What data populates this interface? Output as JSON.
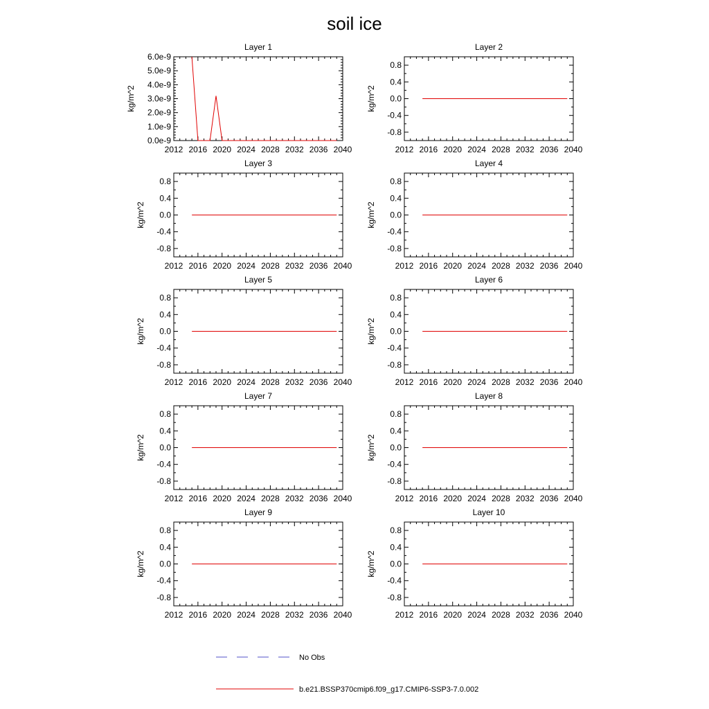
{
  "figure": {
    "title": "soil ice"
  },
  "chart_data": [
    {
      "type": "line",
      "title": "Layer 1",
      "xlabel": "",
      "ylabel": "kg/m^2",
      "xlim": [
        2012,
        2040
      ],
      "ylim": [
        0,
        6e-09
      ],
      "x_ticks": [
        "2012",
        "2016",
        "2020",
        "2024",
        "2028",
        "2032",
        "2036",
        "2040"
      ],
      "y_ticks": [
        "0.0e-9",
        "1.0e-9",
        "2.0e-9",
        "3.0e-9",
        "4.0e-9",
        "5.0e-9",
        "6.0e-9"
      ],
      "series": [
        {
          "name": "b.e21.BSSP370cmip6.f09_g17.CMIP6-SSP3-7.0.002",
          "x": [
            2015,
            2016,
            2017,
            2018,
            2019,
            2020,
            2021,
            2022,
            2023,
            2024,
            2025,
            2026,
            2027,
            2028,
            2029,
            2030,
            2031,
            2032,
            2033,
            2034,
            2035,
            2036,
            2037,
            2038,
            2039
          ],
          "values": [
            6e-09,
            0,
            0,
            0,
            3.2e-09,
            0,
            0,
            0,
            0,
            0,
            0,
            0,
            0,
            0,
            0,
            0,
            0,
            0,
            0,
            0,
            0,
            0,
            0,
            0,
            0
          ]
        }
      ]
    },
    {
      "type": "line",
      "title": "Layer 2",
      "xlabel": "",
      "ylabel": "kg/m^2",
      "xlim": [
        2012,
        2040
      ],
      "ylim": [
        -1,
        1
      ],
      "x_ticks": [
        "2012",
        "2016",
        "2020",
        "2024",
        "2028",
        "2032",
        "2036",
        "2040"
      ],
      "y_ticks": [
        "-0.8",
        "-0.4",
        "0.0",
        "0.4",
        "0.8"
      ],
      "series": [
        {
          "name": "b.e21.BSSP370cmip6.f09_g17.CMIP6-SSP3-7.0.002",
          "x": [
            2015,
            2039
          ],
          "values": [
            0,
            0
          ]
        }
      ]
    },
    {
      "type": "line",
      "title": "Layer 3",
      "xlabel": "",
      "ylabel": "kg/m^2",
      "xlim": [
        2012,
        2040
      ],
      "ylim": [
        -1,
        1
      ],
      "x_ticks": [
        "2012",
        "2016",
        "2020",
        "2024",
        "2028",
        "2032",
        "2036",
        "2040"
      ],
      "y_ticks": [
        "-0.8",
        "-0.4",
        "0.0",
        "0.4",
        "0.8"
      ],
      "series": [
        {
          "name": "b.e21.BSSP370cmip6.f09_g17.CMIP6-SSP3-7.0.002",
          "x": [
            2015,
            2039
          ],
          "values": [
            0,
            0
          ]
        }
      ]
    },
    {
      "type": "line",
      "title": "Layer 4",
      "xlabel": "",
      "ylabel": "kg/m^2",
      "xlim": [
        2012,
        2040
      ],
      "ylim": [
        -1,
        1
      ],
      "x_ticks": [
        "2012",
        "2016",
        "2020",
        "2024",
        "2028",
        "2032",
        "2036",
        "2040"
      ],
      "y_ticks": [
        "-0.8",
        "-0.4",
        "0.0",
        "0.4",
        "0.8"
      ],
      "series": [
        {
          "name": "b.e21.BSSP370cmip6.f09_g17.CMIP6-SSP3-7.0.002",
          "x": [
            2015,
            2039
          ],
          "values": [
            0,
            0
          ]
        }
      ]
    },
    {
      "type": "line",
      "title": "Layer 5",
      "xlabel": "",
      "ylabel": "kg/m^2",
      "xlim": [
        2012,
        2040
      ],
      "ylim": [
        -1,
        1
      ],
      "x_ticks": [
        "2012",
        "2016",
        "2020",
        "2024",
        "2028",
        "2032",
        "2036",
        "2040"
      ],
      "y_ticks": [
        "-0.8",
        "-0.4",
        "0.0",
        "0.4",
        "0.8"
      ],
      "series": [
        {
          "name": "b.e21.BSSP370cmip6.f09_g17.CMIP6-SSP3-7.0.002",
          "x": [
            2015,
            2039
          ],
          "values": [
            0,
            0
          ]
        }
      ]
    },
    {
      "type": "line",
      "title": "Layer 6",
      "xlabel": "",
      "ylabel": "kg/m^2",
      "xlim": [
        2012,
        2040
      ],
      "ylim": [
        -1,
        1
      ],
      "x_ticks": [
        "2012",
        "2016",
        "2020",
        "2024",
        "2028",
        "2032",
        "2036",
        "2040"
      ],
      "y_ticks": [
        "-0.8",
        "-0.4",
        "0.0",
        "0.4",
        "0.8"
      ],
      "series": [
        {
          "name": "b.e21.BSSP370cmip6.f09_g17.CMIP6-SSP3-7.0.002",
          "x": [
            2015,
            2039
          ],
          "values": [
            0,
            0
          ]
        }
      ]
    },
    {
      "type": "line",
      "title": "Layer 7",
      "xlabel": "",
      "ylabel": "kg/m^2",
      "xlim": [
        2012,
        2040
      ],
      "ylim": [
        -1,
        1
      ],
      "x_ticks": [
        "2012",
        "2016",
        "2020",
        "2024",
        "2028",
        "2032",
        "2036",
        "2040"
      ],
      "y_ticks": [
        "-0.8",
        "-0.4",
        "0.0",
        "0.4",
        "0.8"
      ],
      "series": [
        {
          "name": "b.e21.BSSP370cmip6.f09_g17.CMIP6-SSP3-7.0.002",
          "x": [
            2015,
            2039
          ],
          "values": [
            0,
            0
          ]
        }
      ]
    },
    {
      "type": "line",
      "title": "Layer 8",
      "xlabel": "",
      "ylabel": "kg/m^2",
      "xlim": [
        2012,
        2040
      ],
      "ylim": [
        -1,
        1
      ],
      "x_ticks": [
        "2012",
        "2016",
        "2020",
        "2024",
        "2028",
        "2032",
        "2036",
        "2040"
      ],
      "y_ticks": [
        "-0.8",
        "-0.4",
        "0.0",
        "0.4",
        "0.8"
      ],
      "series": [
        {
          "name": "b.e21.BSSP370cmip6.f09_g17.CMIP6-SSP3-7.0.002",
          "x": [
            2015,
            2039
          ],
          "values": [
            0,
            0
          ]
        }
      ]
    },
    {
      "type": "line",
      "title": "Layer 9",
      "xlabel": "",
      "ylabel": "kg/m^2",
      "xlim": [
        2012,
        2040
      ],
      "ylim": [
        -1,
        1
      ],
      "x_ticks": [
        "2012",
        "2016",
        "2020",
        "2024",
        "2028",
        "2032",
        "2036",
        "2040"
      ],
      "y_ticks": [
        "-0.8",
        "-0.4",
        "0.0",
        "0.4",
        "0.8"
      ],
      "series": [
        {
          "name": "b.e21.BSSP370cmip6.f09_g17.CMIP6-SSP3-7.0.002",
          "x": [
            2015,
            2039
          ],
          "values": [
            0,
            0
          ]
        }
      ]
    },
    {
      "type": "line",
      "title": "Layer 10",
      "xlabel": "",
      "ylabel": "kg/m^2",
      "xlim": [
        2012,
        2040
      ],
      "ylim": [
        -1,
        1
      ],
      "x_ticks": [
        "2012",
        "2016",
        "2020",
        "2024",
        "2028",
        "2032",
        "2036",
        "2040"
      ],
      "y_ticks": [
        "-0.8",
        "-0.4",
        "0.0",
        "0.4",
        "0.8"
      ],
      "series": [
        {
          "name": "b.e21.BSSP370cmip6.f09_g17.CMIP6-SSP3-7.0.002",
          "x": [
            2015,
            2039
          ],
          "values": [
            0,
            0
          ]
        }
      ]
    }
  ],
  "legend": {
    "placement": "bottom",
    "items": [
      {
        "label": "No Obs",
        "style": "dashed",
        "color": "#5050c8"
      },
      {
        "label": "b.e21.BSSP370cmip6.f09_g17.CMIP6-SSP3-7.0.002",
        "style": "solid",
        "color": "#e00000"
      }
    ]
  },
  "colors": {
    "model_line": "#e00000",
    "obs_line": "#5050c8",
    "axes": "#000000"
  }
}
